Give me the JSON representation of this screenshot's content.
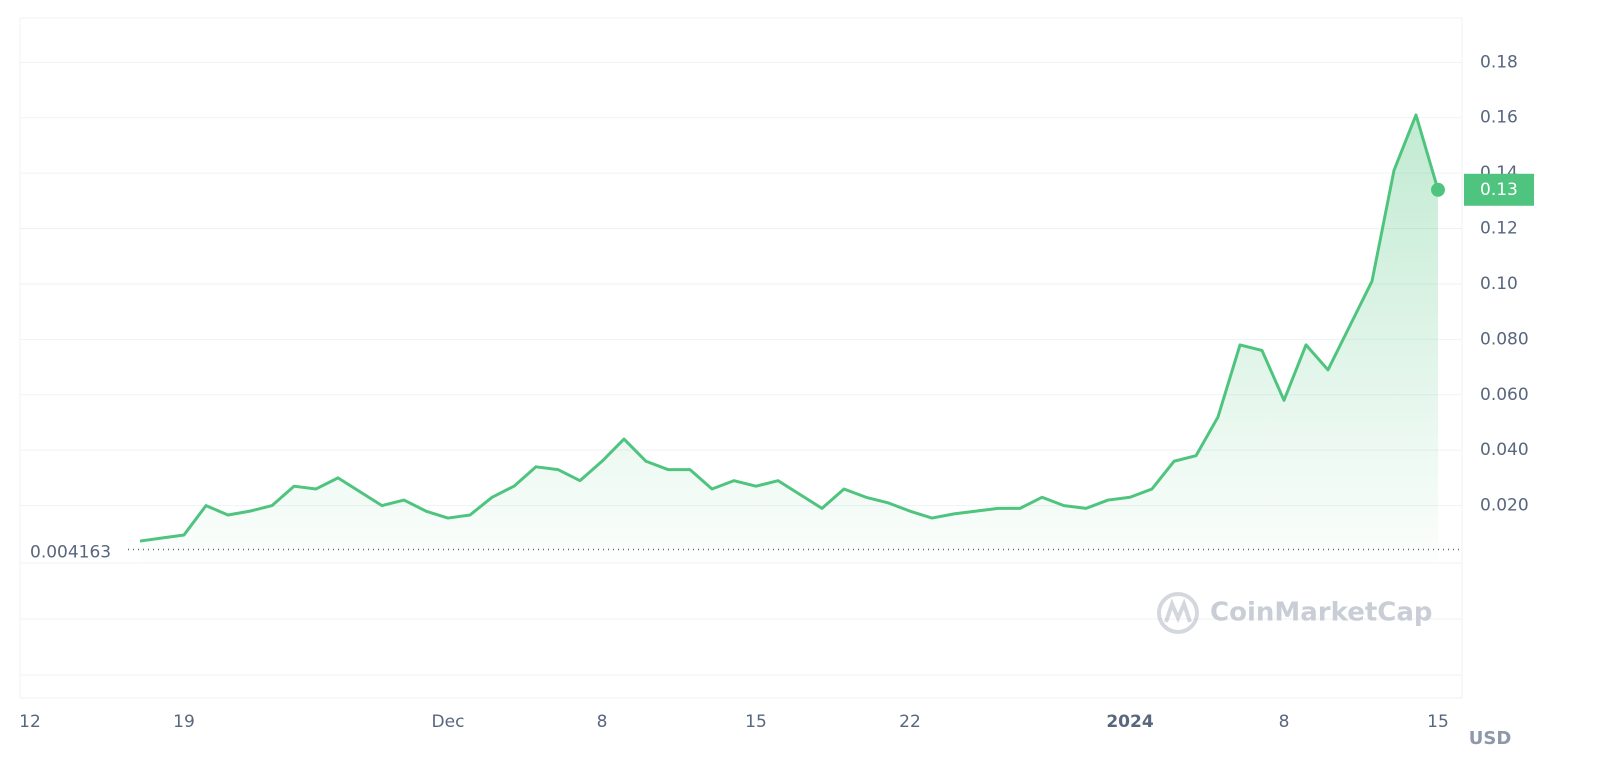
{
  "chart_data": {
    "type": "line",
    "categories": [
      "12",
      null,
      null,
      null,
      null,
      null,
      null,
      "19",
      null,
      null,
      null,
      null,
      null,
      null,
      null,
      null,
      null,
      null,
      null,
      "Dec",
      null,
      null,
      null,
      null,
      null,
      null,
      "8",
      null,
      null,
      null,
      null,
      null,
      null,
      "15",
      null,
      null,
      null,
      null,
      null,
      null,
      "22",
      null,
      null,
      null,
      null,
      null,
      null,
      null,
      null,
      null,
      "2024",
      null,
      null,
      null,
      null,
      null,
      null,
      "8",
      null,
      null,
      null,
      null,
      null,
      null,
      "15"
    ],
    "series": [
      {
        "color": "#4fc47f",
        "values": [
          null,
          null,
          null,
          null,
          null,
          0.0072,
          0.0083,
          0.0094,
          0.02,
          0.0166,
          0.018,
          0.02,
          0.027,
          0.026,
          0.03,
          0.025,
          0.02,
          0.022,
          0.018,
          0.0155,
          0.0166,
          0.023,
          0.027,
          0.034,
          0.033,
          0.029,
          0.036,
          0.044,
          0.036,
          0.033,
          0.033,
          0.026,
          0.029,
          0.027,
          0.029,
          0.024,
          0.019,
          0.026,
          0.023,
          0.021,
          0.018,
          0.0155,
          0.017,
          0.018,
          0.019,
          0.019,
          0.023,
          0.02,
          0.019,
          0.022,
          0.023,
          0.026,
          0.036,
          0.038,
          0.052,
          0.078,
          0.076,
          0.058,
          0.078,
          0.069,
          0.085,
          0.101,
          0.141,
          0.161,
          0.134
        ]
      }
    ],
    "ylim": [
      0,
      0.196
    ],
    "yticks": [
      {
        "value": 0.02,
        "label": "0.020"
      },
      {
        "value": 0.04,
        "label": "0.040"
      },
      {
        "value": 0.06,
        "label": "0.060"
      },
      {
        "value": 0.08,
        "label": "0.080"
      },
      {
        "value": 0.1,
        "label": "0.10"
      },
      0.12,
      0.14,
      0.16,
      0.18
    ],
    "grid": true,
    "baseline": 0.004163,
    "last_price": {
      "value": 0.134,
      "label": "0.13"
    },
    "currency": "USD",
    "watermark": "CoinMarketCap"
  }
}
